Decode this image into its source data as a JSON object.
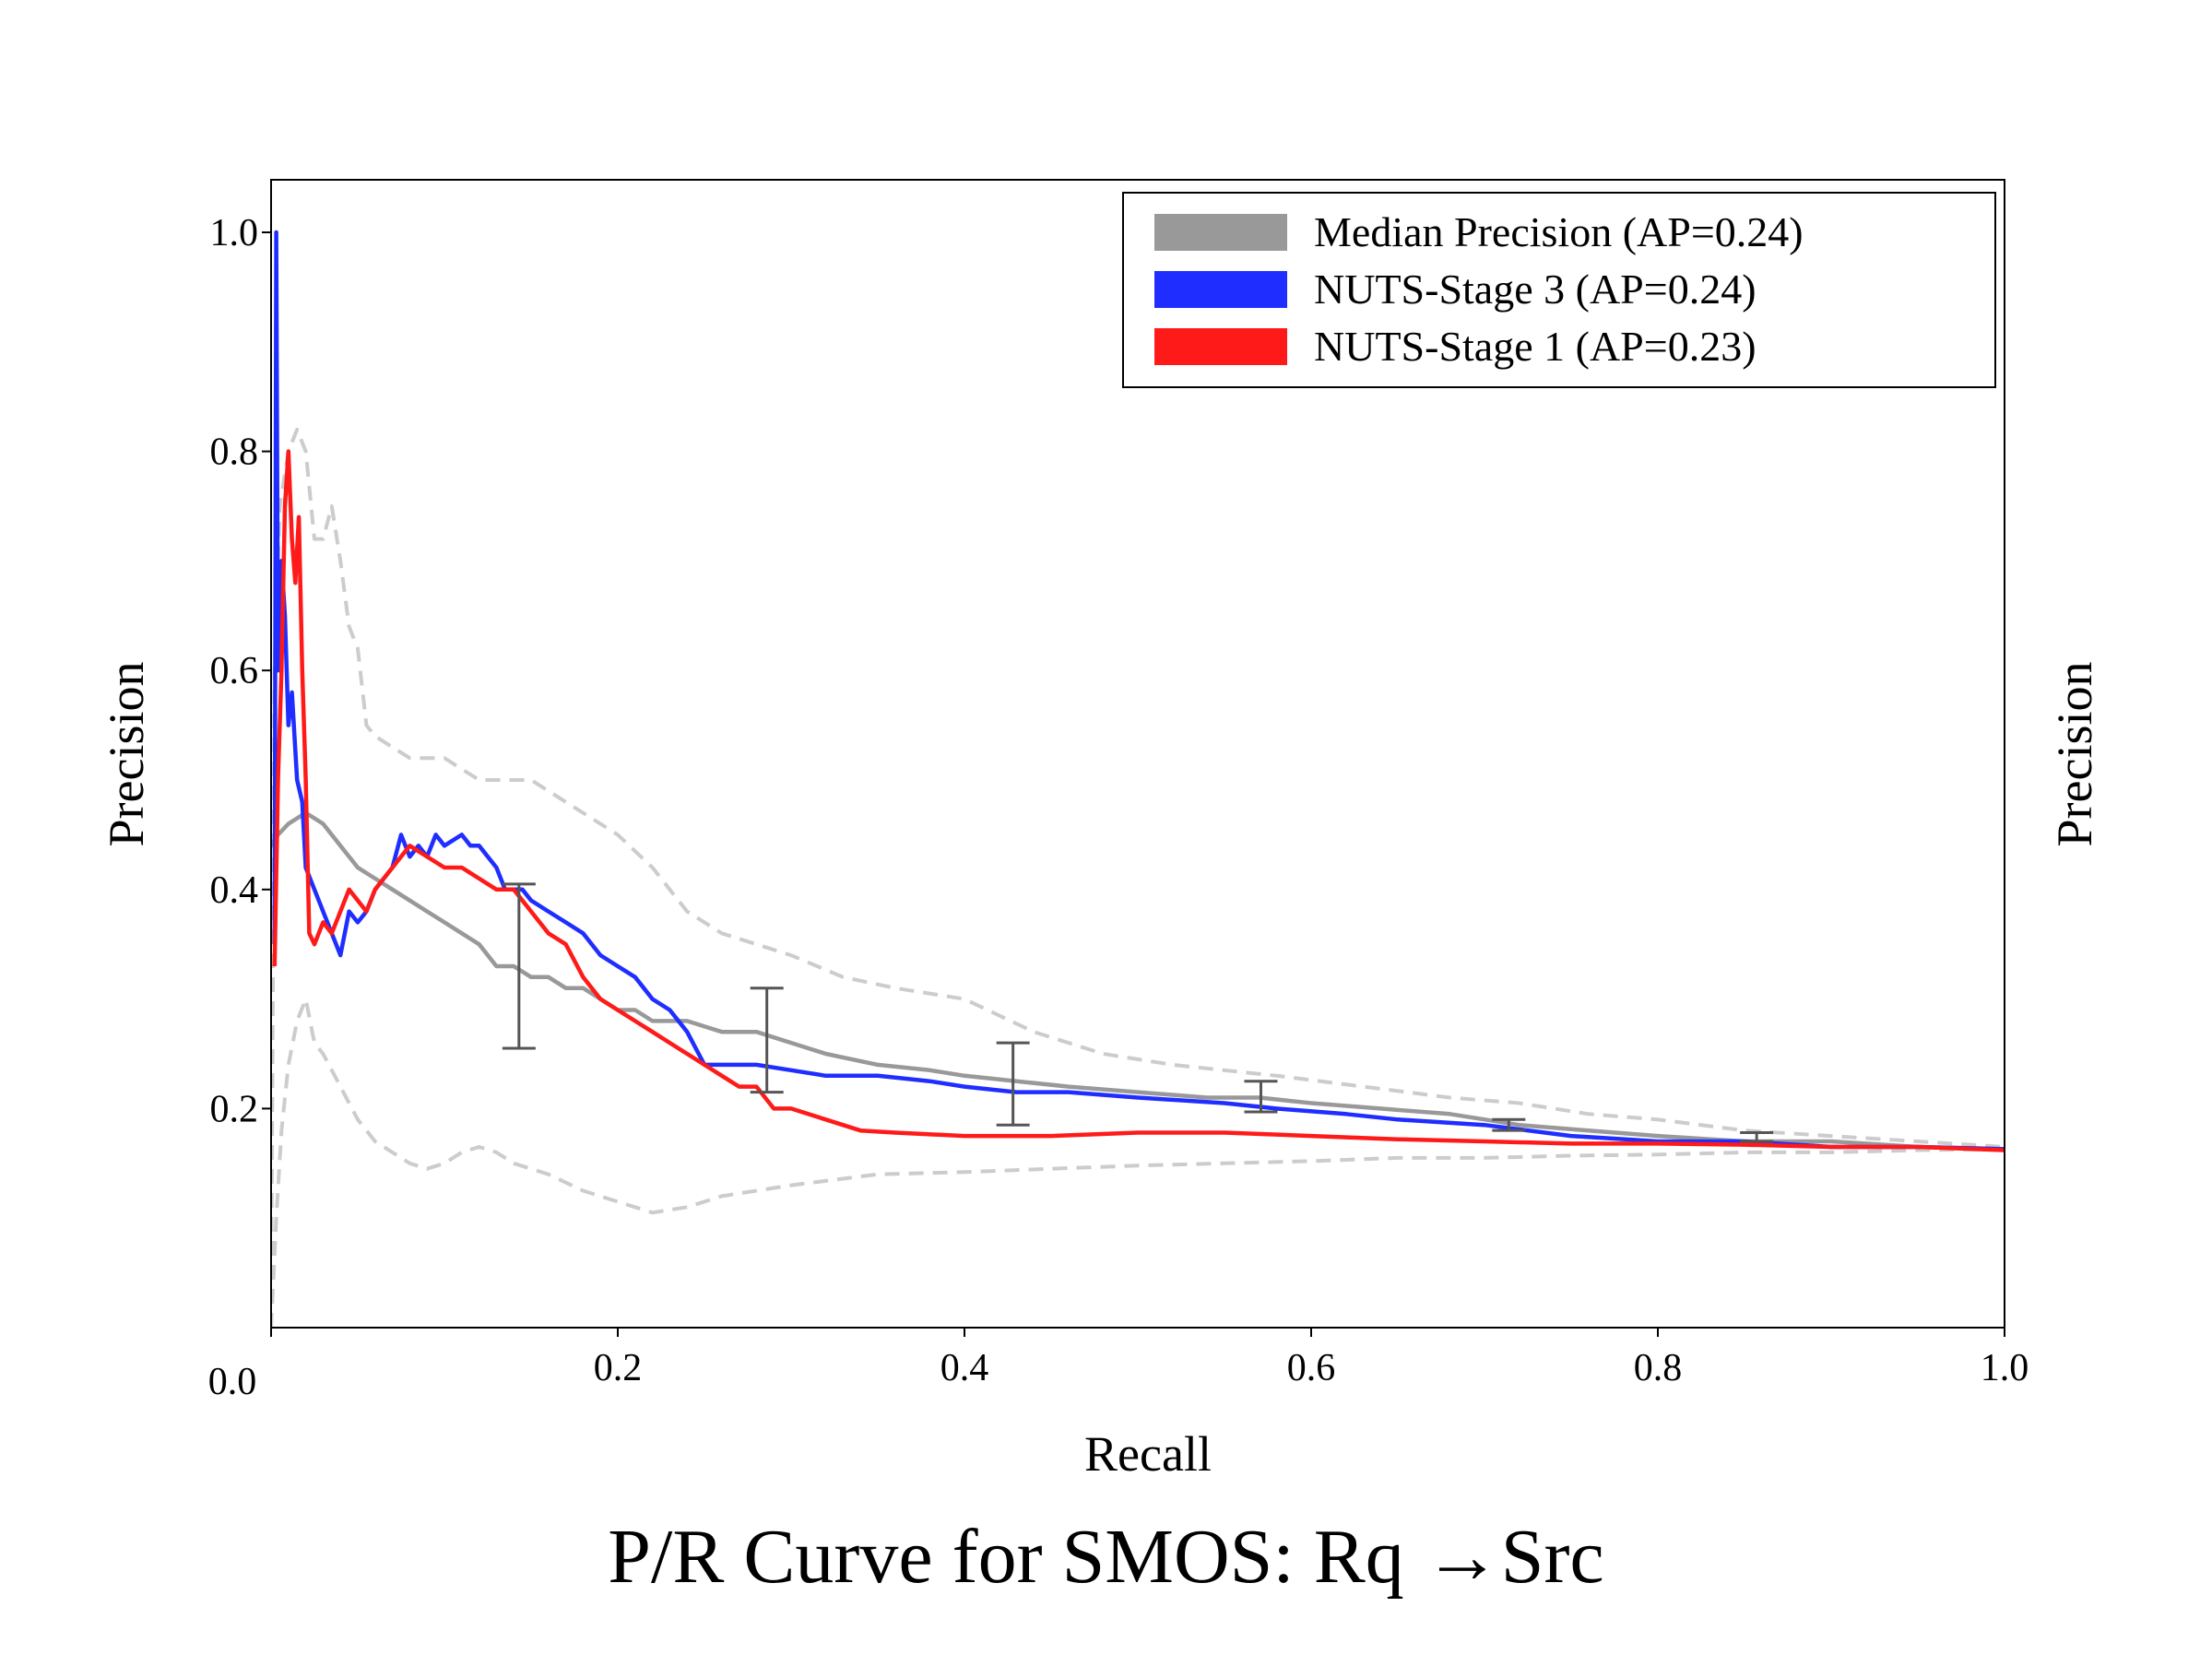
{
  "caption": "P/R Curve for SMOS: Rq →Src",
  "chart_data": {
    "type": "line",
    "xlabel": "Recall",
    "ylabel": "Precision",
    "ylabel_right": "Precision",
    "xlim": [
      0.0,
      1.0
    ],
    "ylim": [
      0.0,
      1.05
    ],
    "x_ticks": [
      0.0,
      0.2,
      0.4,
      0.6,
      0.8,
      1.0
    ],
    "x_tick_labels": [
      "0.0",
      "0.2",
      "0.4",
      "0.6",
      "0.8",
      "1.0"
    ],
    "y_ticks": [
      0.2,
      0.4,
      0.6,
      0.8,
      1.0
    ],
    "y_tick_labels": [
      "0.2",
      "0.4",
      "0.6",
      "0.8",
      "1.0"
    ],
    "legend_position": "top-right",
    "grid": false,
    "series": [
      {
        "name": "Median Precision (AP=0.24)",
        "color": "#999999",
        "points": [
          [
            0.0,
            0.44
          ],
          [
            0.004,
            0.45
          ],
          [
            0.01,
            0.46
          ],
          [
            0.02,
            0.47
          ],
          [
            0.03,
            0.46
          ],
          [
            0.04,
            0.44
          ],
          [
            0.05,
            0.42
          ],
          [
            0.06,
            0.41
          ],
          [
            0.07,
            0.4
          ],
          [
            0.08,
            0.39
          ],
          [
            0.09,
            0.38
          ],
          [
            0.1,
            0.37
          ],
          [
            0.11,
            0.36
          ],
          [
            0.12,
            0.35
          ],
          [
            0.13,
            0.33
          ],
          [
            0.14,
            0.33
          ],
          [
            0.15,
            0.32
          ],
          [
            0.16,
            0.32
          ],
          [
            0.17,
            0.31
          ],
          [
            0.18,
            0.31
          ],
          [
            0.19,
            0.3
          ],
          [
            0.2,
            0.29
          ],
          [
            0.21,
            0.29
          ],
          [
            0.22,
            0.28
          ],
          [
            0.24,
            0.28
          ],
          [
            0.26,
            0.27
          ],
          [
            0.28,
            0.27
          ],
          [
            0.3,
            0.26
          ],
          [
            0.32,
            0.25
          ],
          [
            0.35,
            0.24
          ],
          [
            0.38,
            0.235
          ],
          [
            0.4,
            0.23
          ],
          [
            0.43,
            0.225
          ],
          [
            0.46,
            0.22
          ],
          [
            0.5,
            0.215
          ],
          [
            0.54,
            0.21
          ],
          [
            0.57,
            0.21
          ],
          [
            0.6,
            0.205
          ],
          [
            0.64,
            0.2
          ],
          [
            0.68,
            0.195
          ],
          [
            0.72,
            0.185
          ],
          [
            0.76,
            0.18
          ],
          [
            0.8,
            0.175
          ],
          [
            0.85,
            0.17
          ],
          [
            0.9,
            0.17
          ],
          [
            0.95,
            0.165
          ],
          [
            1.0,
            0.163
          ]
        ]
      },
      {
        "name": "NUTS-Stage 3 (AP=0.24)",
        "color": "#1f2eff",
        "points": [
          [
            0.002,
            0.35
          ],
          [
            0.003,
            1.0
          ],
          [
            0.004,
            0.6
          ],
          [
            0.006,
            0.7
          ],
          [
            0.008,
            0.65
          ],
          [
            0.01,
            0.55
          ],
          [
            0.012,
            0.58
          ],
          [
            0.015,
            0.5
          ],
          [
            0.018,
            0.48
          ],
          [
            0.02,
            0.42
          ],
          [
            0.025,
            0.4
          ],
          [
            0.03,
            0.38
          ],
          [
            0.035,
            0.36
          ],
          [
            0.04,
            0.34
          ],
          [
            0.045,
            0.38
          ],
          [
            0.05,
            0.37
          ],
          [
            0.055,
            0.38
          ],
          [
            0.06,
            0.4
          ],
          [
            0.065,
            0.41
          ],
          [
            0.07,
            0.42
          ],
          [
            0.075,
            0.45
          ],
          [
            0.08,
            0.43
          ],
          [
            0.085,
            0.44
          ],
          [
            0.09,
            0.43
          ],
          [
            0.095,
            0.45
          ],
          [
            0.1,
            0.44
          ],
          [
            0.11,
            0.45
          ],
          [
            0.115,
            0.44
          ],
          [
            0.12,
            0.44
          ],
          [
            0.125,
            0.43
          ],
          [
            0.13,
            0.42
          ],
          [
            0.135,
            0.4
          ],
          [
            0.14,
            0.4
          ],
          [
            0.145,
            0.4
          ],
          [
            0.15,
            0.39
          ],
          [
            0.16,
            0.38
          ],
          [
            0.17,
            0.37
          ],
          [
            0.18,
            0.36
          ],
          [
            0.19,
            0.34
          ],
          [
            0.2,
            0.33
          ],
          [
            0.21,
            0.32
          ],
          [
            0.215,
            0.31
          ],
          [
            0.22,
            0.3
          ],
          [
            0.23,
            0.29
          ],
          [
            0.24,
            0.27
          ],
          [
            0.25,
            0.24
          ],
          [
            0.26,
            0.24
          ],
          [
            0.28,
            0.24
          ],
          [
            0.3,
            0.235
          ],
          [
            0.32,
            0.23
          ],
          [
            0.35,
            0.23
          ],
          [
            0.38,
            0.225
          ],
          [
            0.4,
            0.22
          ],
          [
            0.43,
            0.215
          ],
          [
            0.46,
            0.215
          ],
          [
            0.5,
            0.21
          ],
          [
            0.55,
            0.205
          ],
          [
            0.58,
            0.2
          ],
          [
            0.62,
            0.195
          ],
          [
            0.65,
            0.19
          ],
          [
            0.7,
            0.185
          ],
          [
            0.75,
            0.175
          ],
          [
            0.8,
            0.17
          ],
          [
            0.85,
            0.17
          ],
          [
            0.9,
            0.165
          ],
          [
            0.95,
            0.165
          ],
          [
            1.0,
            0.163
          ]
        ]
      },
      {
        "name": "NUTS-Stage 1 (AP=0.23)",
        "color": "#ff1a1a",
        "points": [
          [
            0.002,
            0.33
          ],
          [
            0.004,
            0.5
          ],
          [
            0.006,
            0.6
          ],
          [
            0.008,
            0.75
          ],
          [
            0.01,
            0.8
          ],
          [
            0.012,
            0.72
          ],
          [
            0.014,
            0.68
          ],
          [
            0.016,
            0.74
          ],
          [
            0.018,
            0.6
          ],
          [
            0.02,
            0.5
          ],
          [
            0.022,
            0.36
          ],
          [
            0.025,
            0.35
          ],
          [
            0.03,
            0.37
          ],
          [
            0.035,
            0.36
          ],
          [
            0.04,
            0.38
          ],
          [
            0.045,
            0.4
          ],
          [
            0.05,
            0.39
          ],
          [
            0.055,
            0.38
          ],
          [
            0.06,
            0.4
          ],
          [
            0.07,
            0.42
          ],
          [
            0.08,
            0.44
          ],
          [
            0.09,
            0.43
          ],
          [
            0.1,
            0.42
          ],
          [
            0.11,
            0.42
          ],
          [
            0.12,
            0.41
          ],
          [
            0.13,
            0.4
          ],
          [
            0.14,
            0.4
          ],
          [
            0.15,
            0.38
          ],
          [
            0.16,
            0.36
          ],
          [
            0.17,
            0.35
          ],
          [
            0.18,
            0.32
          ],
          [
            0.19,
            0.3
          ],
          [
            0.2,
            0.29
          ],
          [
            0.21,
            0.28
          ],
          [
            0.22,
            0.27
          ],
          [
            0.23,
            0.26
          ],
          [
            0.24,
            0.25
          ],
          [
            0.25,
            0.24
          ],
          [
            0.26,
            0.23
          ],
          [
            0.27,
            0.22
          ],
          [
            0.28,
            0.22
          ],
          [
            0.29,
            0.2
          ],
          [
            0.3,
            0.2
          ],
          [
            0.32,
            0.19
          ],
          [
            0.34,
            0.18
          ],
          [
            0.36,
            0.178
          ],
          [
            0.4,
            0.175
          ],
          [
            0.45,
            0.175
          ],
          [
            0.5,
            0.178
          ],
          [
            0.55,
            0.178
          ],
          [
            0.6,
            0.175
          ],
          [
            0.65,
            0.172
          ],
          [
            0.7,
            0.17
          ],
          [
            0.75,
            0.168
          ],
          [
            0.8,
            0.168
          ],
          [
            0.85,
            0.167
          ],
          [
            0.9,
            0.165
          ],
          [
            0.95,
            0.165
          ],
          [
            1.0,
            0.162
          ]
        ]
      },
      {
        "name": "upper band",
        "color": "#cccccc",
        "dashed": true,
        "points": [
          [
            0.0,
            0.0
          ],
          [
            0.002,
            0.6
          ],
          [
            0.005,
            0.75
          ],
          [
            0.01,
            0.8
          ],
          [
            0.015,
            0.82
          ],
          [
            0.02,
            0.8
          ],
          [
            0.025,
            0.72
          ],
          [
            0.03,
            0.72
          ],
          [
            0.035,
            0.75
          ],
          [
            0.04,
            0.7
          ],
          [
            0.045,
            0.64
          ],
          [
            0.05,
            0.62
          ],
          [
            0.055,
            0.55
          ],
          [
            0.06,
            0.54
          ],
          [
            0.07,
            0.53
          ],
          [
            0.08,
            0.52
          ],
          [
            0.1,
            0.52
          ],
          [
            0.12,
            0.5
          ],
          [
            0.15,
            0.5
          ],
          [
            0.17,
            0.48
          ],
          [
            0.2,
            0.45
          ],
          [
            0.22,
            0.42
          ],
          [
            0.24,
            0.38
          ],
          [
            0.26,
            0.36
          ],
          [
            0.28,
            0.35
          ],
          [
            0.3,
            0.34
          ],
          [
            0.33,
            0.32
          ],
          [
            0.36,
            0.31
          ],
          [
            0.4,
            0.3
          ],
          [
            0.44,
            0.27
          ],
          [
            0.48,
            0.25
          ],
          [
            0.52,
            0.24
          ],
          [
            0.58,
            0.23
          ],
          [
            0.63,
            0.22
          ],
          [
            0.68,
            0.21
          ],
          [
            0.72,
            0.205
          ],
          [
            0.76,
            0.195
          ],
          [
            0.8,
            0.19
          ],
          [
            0.85,
            0.18
          ],
          [
            0.9,
            0.175
          ],
          [
            0.95,
            0.17
          ],
          [
            1.0,
            0.165
          ]
        ]
      },
      {
        "name": "lower band",
        "color": "#cccccc",
        "dashed": true,
        "points": [
          [
            0.0,
            0.0
          ],
          [
            0.003,
            0.1
          ],
          [
            0.006,
            0.18
          ],
          [
            0.01,
            0.24
          ],
          [
            0.015,
            0.28
          ],
          [
            0.02,
            0.3
          ],
          [
            0.025,
            0.26
          ],
          [
            0.03,
            0.25
          ],
          [
            0.04,
            0.22
          ],
          [
            0.05,
            0.19
          ],
          [
            0.06,
            0.17
          ],
          [
            0.07,
            0.16
          ],
          [
            0.08,
            0.15
          ],
          [
            0.09,
            0.145
          ],
          [
            0.1,
            0.15
          ],
          [
            0.11,
            0.16
          ],
          [
            0.12,
            0.165
          ],
          [
            0.13,
            0.16
          ],
          [
            0.14,
            0.15
          ],
          [
            0.16,
            0.14
          ],
          [
            0.18,
            0.125
          ],
          [
            0.2,
            0.115
          ],
          [
            0.22,
            0.105
          ],
          [
            0.24,
            0.11
          ],
          [
            0.26,
            0.12
          ],
          [
            0.3,
            0.13
          ],
          [
            0.35,
            0.14
          ],
          [
            0.4,
            0.142
          ],
          [
            0.45,
            0.145
          ],
          [
            0.5,
            0.148
          ],
          [
            0.55,
            0.15
          ],
          [
            0.6,
            0.152
          ],
          [
            0.65,
            0.155
          ],
          [
            0.7,
            0.155
          ],
          [
            0.75,
            0.157
          ],
          [
            0.8,
            0.158
          ],
          [
            0.85,
            0.16
          ],
          [
            0.9,
            0.16
          ],
          [
            0.95,
            0.162
          ],
          [
            1.0,
            0.163
          ]
        ]
      }
    ],
    "error_bars": [
      {
        "x": 0.143,
        "low": 0.255,
        "high": 0.405
      },
      {
        "x": 0.286,
        "low": 0.215,
        "high": 0.31
      },
      {
        "x": 0.428,
        "low": 0.185,
        "high": 0.26
      },
      {
        "x": 0.571,
        "low": 0.197,
        "high": 0.225
      },
      {
        "x": 0.714,
        "low": 0.18,
        "high": 0.19
      },
      {
        "x": 0.857,
        "low": 0.17,
        "high": 0.178
      }
    ],
    "legend": [
      {
        "label": "Median Precision (AP=0.24)",
        "color": "#999999"
      },
      {
        "label": "NUTS-Stage 3 (AP=0.24)",
        "color": "#1f2eff"
      },
      {
        "label": "NUTS-Stage 1 (AP=0.23)",
        "color": "#ff1a1a"
      }
    ]
  }
}
